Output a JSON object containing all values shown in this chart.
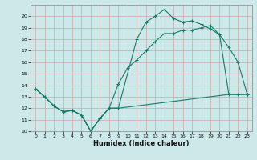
{
  "xlabel": "Humidex (Indice chaleur)",
  "background_color": "#cce8e8",
  "grid_color": "#c8a8a8",
  "line_color": "#1a7a6a",
  "xlim": [
    -0.5,
    23.5
  ],
  "ylim": [
    10,
    21
  ],
  "xticks": [
    0,
    1,
    2,
    3,
    4,
    5,
    6,
    7,
    8,
    9,
    10,
    11,
    12,
    13,
    14,
    15,
    16,
    17,
    18,
    19,
    20,
    21,
    22,
    23
  ],
  "yticks": [
    10,
    11,
    12,
    13,
    14,
    15,
    16,
    17,
    18,
    19,
    20
  ],
  "line1_x": [
    0,
    1,
    2,
    3,
    4,
    5,
    6,
    7,
    8,
    9,
    10,
    11,
    12,
    13,
    14,
    15,
    16,
    17,
    18,
    19,
    20,
    21,
    22,
    23
  ],
  "line1_y": [
    13.7,
    13.0,
    12.2,
    11.7,
    11.8,
    11.4,
    10.0,
    11.1,
    12.0,
    12.0,
    15.0,
    18.0,
    19.5,
    20.0,
    20.6,
    19.8,
    19.5,
    19.6,
    19.3,
    18.9,
    18.4,
    17.3,
    16.0,
    13.2
  ],
  "line2_x": [
    0,
    1,
    2,
    3,
    4,
    5,
    6,
    7,
    8,
    9,
    10,
    11,
    12,
    13,
    14,
    15,
    16,
    17,
    18,
    19,
    20,
    21,
    22,
    23
  ],
  "line2_y": [
    13.7,
    13.0,
    12.2,
    11.7,
    11.8,
    11.4,
    10.0,
    11.1,
    12.0,
    14.1,
    15.5,
    16.2,
    17.0,
    17.8,
    18.5,
    18.5,
    18.8,
    18.8,
    19.0,
    19.2,
    18.4,
    13.2,
    13.2,
    13.2
  ],
  "line3_x": [
    0,
    1,
    2,
    3,
    4,
    5,
    6,
    7,
    8,
    9,
    10,
    11,
    12,
    13,
    14,
    15,
    16,
    17,
    18,
    19,
    20,
    21,
    22,
    23
  ],
  "line3_y": [
    13.7,
    13.0,
    12.2,
    11.7,
    11.8,
    11.4,
    10.0,
    11.1,
    12.0,
    12.0,
    12.1,
    12.2,
    12.3,
    12.4,
    12.5,
    12.6,
    12.7,
    12.8,
    12.9,
    13.0,
    13.1,
    13.2,
    13.2,
    13.2
  ],
  "figsize": [
    3.2,
    2.0
  ],
  "dpi": 100
}
